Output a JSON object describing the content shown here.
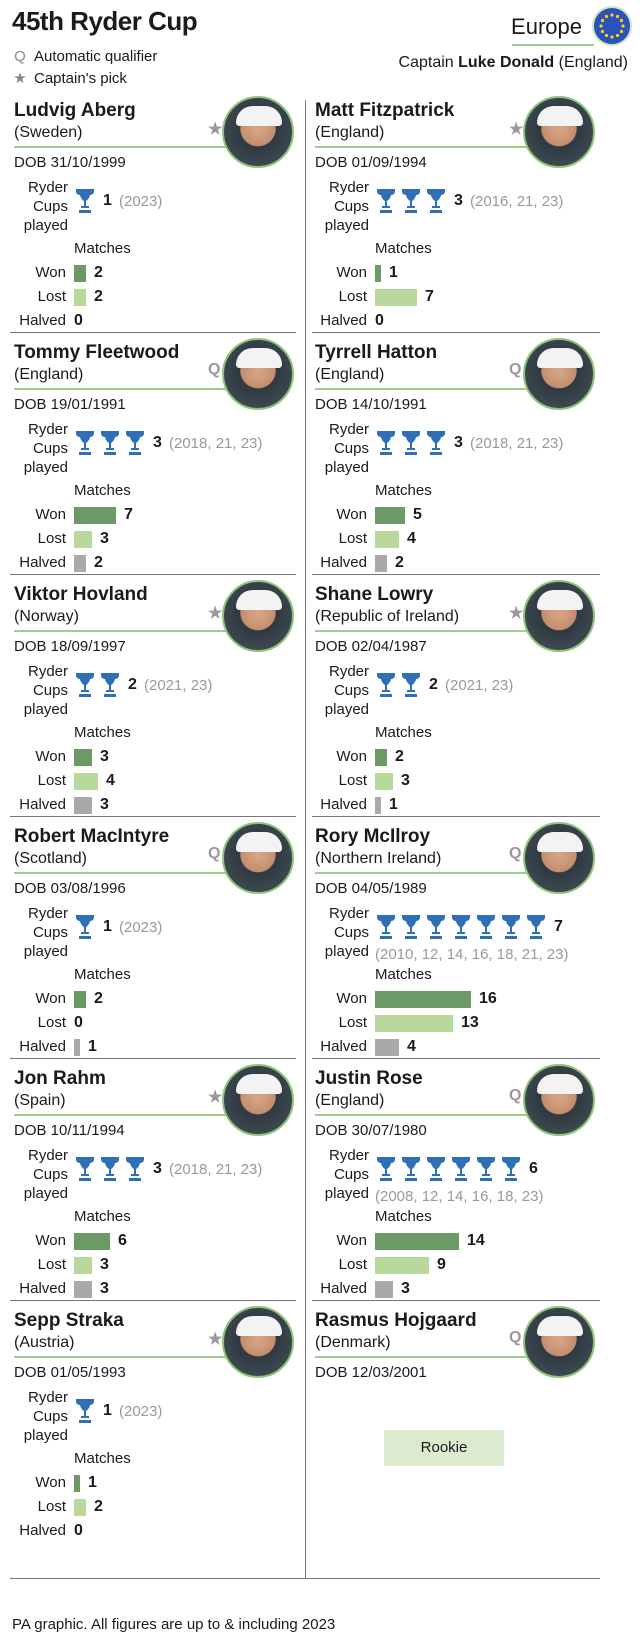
{
  "header": {
    "title": "45th Ryder Cup",
    "legend_q": "Automatic qualifier",
    "legend_q_symbol": "Q",
    "legend_star": "Captain's pick",
    "legend_star_symbol": "★",
    "team": "Europe",
    "captain_prefix": "Captain",
    "captain_name": "Luke Donald",
    "captain_country": "(England)"
  },
  "labels": {
    "ryder": "Ryder",
    "cups": "Cups",
    "played": "played",
    "matches": "Matches",
    "won": "Won",
    "lost": "Lost",
    "halved": "Halved"
  },
  "players": [
    {
      "name": "Ludvig Aberg",
      "country": "(Sweden)",
      "selection": "★",
      "dob": "DOB 31/10/1999",
      "cups": 1,
      "cups_text": "1",
      "years": "(2023)",
      "won": 2,
      "lost": 2,
      "halved": 0
    },
    {
      "name": "Matt Fitzpatrick",
      "country": "(England)",
      "selection": "★",
      "dob": "DOB 01/09/1994",
      "cups": 3,
      "cups_text": "3",
      "years": "(2016, 21, 23)",
      "won": 1,
      "lost": 7,
      "halved": 0
    },
    {
      "name": "Tommy Fleetwood",
      "country": "(England)",
      "selection": "Q",
      "dob": "DOB 19/01/1991",
      "cups": 3,
      "cups_text": "3",
      "years": "(2018, 21, 23)",
      "won": 7,
      "lost": 3,
      "halved": 2
    },
    {
      "name": "Tyrrell Hatton",
      "country": "(England)",
      "selection": "Q",
      "dob": "DOB 14/10/1991",
      "cups": 3,
      "cups_text": "3",
      "years": "(2018, 21, 23)",
      "won": 5,
      "lost": 4,
      "halved": 2
    },
    {
      "name": "Viktor Hovland",
      "country": "(Norway)",
      "selection": "★",
      "dob": "DOB 18/09/1997",
      "cups": 2,
      "cups_text": "2",
      "years": "(2021, 23)",
      "won": 3,
      "lost": 4,
      "halved": 3
    },
    {
      "name": "Shane Lowry",
      "country": "(Republic of Ireland)",
      "selection": "★",
      "dob": "DOB 02/04/1987",
      "cups": 2,
      "cups_text": "2",
      "years": "(2021, 23)",
      "won": 2,
      "lost": 3,
      "halved": 1
    },
    {
      "name": "Robert MacIntyre",
      "country": "(Scotland)",
      "selection": "Q",
      "dob": "DOB 03/08/1996",
      "cups": 1,
      "cups_text": "1",
      "years": "(2023)",
      "won": 2,
      "lost": 0,
      "halved": 1
    },
    {
      "name": "Rory McIlroy",
      "country": "(Northern Ireland)",
      "selection": "Q",
      "dob": "DOB 04/05/1989",
      "cups": 7,
      "cups_text": "7",
      "years": "(2010, 12, 14, 16, 18, 21, 23)",
      "won": 16,
      "lost": 13,
      "halved": 4
    },
    {
      "name": "Jon Rahm",
      "country": "(Spain)",
      "selection": "★",
      "dob": "DOB 10/11/1994",
      "cups": 3,
      "cups_text": "3",
      "years": "(2018, 21, 23)",
      "won": 6,
      "lost": 3,
      "halved": 3
    },
    {
      "name": "Justin Rose",
      "country": "(England)",
      "selection": "Q",
      "dob": "DOB 30/07/1980",
      "cups": 6,
      "cups_text": "6",
      "years": "(2008, 12, 14, 16, 18, 23)",
      "won": 14,
      "lost": 9,
      "halved": 3
    },
    {
      "name": "Sepp Straka",
      "country": "(Austria)",
      "selection": "★",
      "dob": "DOB 01/05/1993",
      "cups": 1,
      "cups_text": "1",
      "years": "(2023)",
      "won": 1,
      "lost": 2,
      "halved": 0
    },
    {
      "name": "Rasmus Hojgaard",
      "country": "(Denmark)",
      "selection": "Q",
      "dob": "DOB 12/03/2001",
      "rookie": true
    }
  ],
  "rookie_label": "Rookie",
  "footer": "PA graphic. All figures are up to & including 2023",
  "colors": {
    "won": "#6b9a66",
    "lost": "#b8d99b",
    "halved": "#a9a9a9",
    "trophy": "#2f6fb5",
    "accent_line": "#9fcf8a"
  }
}
